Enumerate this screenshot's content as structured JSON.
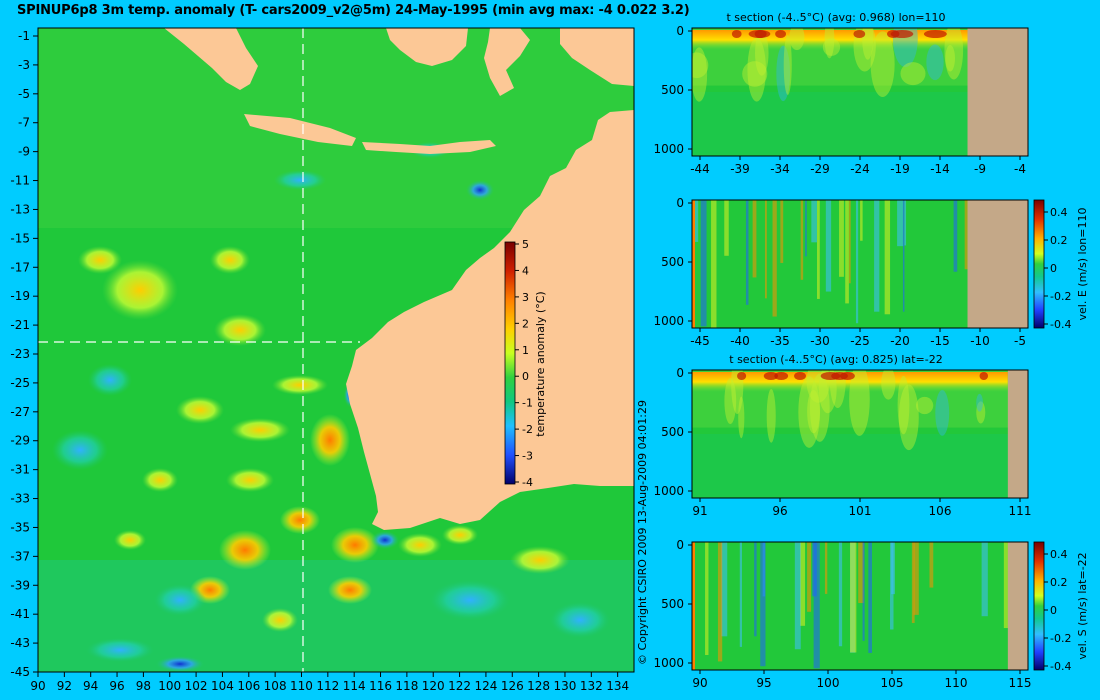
{
  "title": "SPINUP6p8 3m temp. anomaly (T- cars2009_v2@5m) 24-May-1995 (min avg max: -4 0.022 3.2)",
  "copyright": "© Copyright CSIRO 2009   13-Aug-2009 04:01:29",
  "colors": {
    "background": "#00ccff",
    "ocean_base": "#1fc83a",
    "land": "#fcc896",
    "section_land": "#c4a888"
  },
  "map": {
    "lon_ticks": [
      "90",
      "92",
      "94",
      "96",
      "98",
      "100",
      "102",
      "104",
      "106",
      "108",
      "110",
      "112",
      "114",
      "116",
      "118",
      "120",
      "122",
      "124",
      "126",
      "128",
      "130",
      "132",
      "134"
    ],
    "lat_ticks": [
      "-1",
      "-3",
      "-5",
      "-7",
      "-9",
      "-11",
      "-13",
      "-15",
      "-17",
      "-19",
      "-21",
      "-23",
      "-25",
      "-27",
      "-29",
      "-31",
      "-33",
      "-35",
      "-37",
      "-39",
      "-41",
      "-43",
      "-45"
    ],
    "section_lon": 110,
    "section_lat": -22,
    "colorbar": {
      "label": "temperature anomaly (°C)",
      "ticks": [
        "5",
        "4",
        "3",
        "2",
        "1",
        "0",
        "-1",
        "-2",
        "-3",
        "-4"
      ]
    }
  },
  "panels": [
    {
      "title": "t section (-4..5°C) (avg: 0.968) lon=110",
      "x_ticks": [
        "-44",
        "-39",
        "-34",
        "-29",
        "-24",
        "-19",
        "-14",
        "-9",
        "-4"
      ],
      "y_ticks": [
        "0",
        "500",
        "1000"
      ],
      "land_start_fraction": 0.82
    },
    {
      "title": "",
      "x_ticks": [
        "-45",
        "-40",
        "-35",
        "-30",
        "-25",
        "-20",
        "-15",
        "-10",
        "-5"
      ],
      "y_ticks": [
        "0",
        "500",
        "1000"
      ],
      "colorbar_label": "vel. E (m/s) lon=110",
      "colorbar_ticks": [
        "0.4",
        "0.2",
        "0",
        "-0.2",
        "-0.4"
      ],
      "land_start_fraction": 0.82
    },
    {
      "title": "t section (-4..5°C) (avg: 0.825) lat=-22",
      "x_ticks": [
        "91",
        "96",
        "101",
        "106",
        "111"
      ],
      "y_ticks": [
        "0",
        "500",
        "1000"
      ],
      "land_start_fraction": 0.94
    },
    {
      "title": "",
      "x_ticks": [
        "90",
        "95",
        "100",
        "105",
        "110",
        "115"
      ],
      "y_ticks": [
        "0",
        "500",
        "1000"
      ],
      "colorbar_label": "vel. S (m/s) lat=-22",
      "colorbar_ticks": [
        "0.4",
        "0.2",
        "0",
        "-0.2",
        "-0.4"
      ],
      "land_start_fraction": 0.94
    }
  ]
}
